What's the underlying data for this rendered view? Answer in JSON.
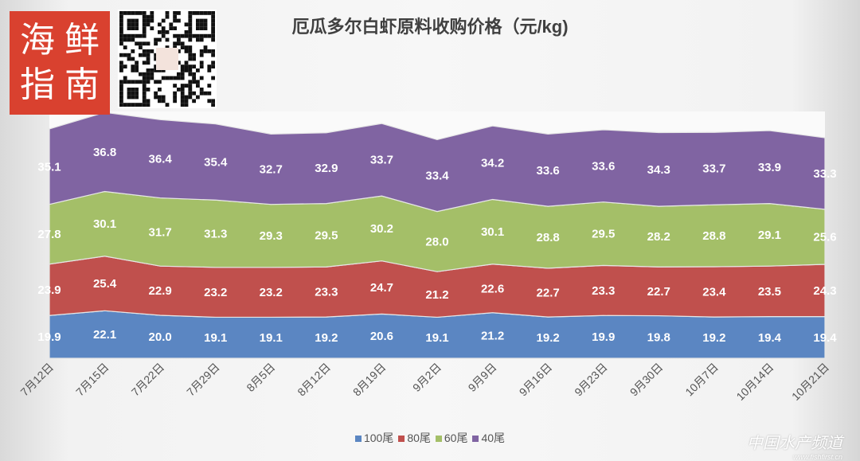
{
  "logo": {
    "chars": [
      "海",
      "鲜",
      "指",
      "南"
    ]
  },
  "watermark": {
    "name": "中国水产频道",
    "url": "www.fishfirst.cn"
  },
  "chart_data": {
    "type": "area",
    "stacked": true,
    "title": "厄瓜多尔白虾原料收购价格（元/kg)",
    "categories": [
      "7月12日",
      "7月15日",
      "7月22日",
      "7月29日",
      "8月5日",
      "8月12日",
      "8月19日",
      "9月2日",
      "9月9日",
      "9月16日",
      "9月23日",
      "9月30日",
      "10月7日",
      "10月14日",
      "10月21日"
    ],
    "series": [
      {
        "name": "100尾",
        "color": "#5b86c2",
        "values": [
          19.9,
          22.1,
          20.0,
          19.1,
          19.1,
          19.2,
          20.6,
          19.1,
          21.2,
          19.2,
          19.9,
          19.8,
          19.2,
          19.4,
          19.4
        ]
      },
      {
        "name": "80尾",
        "color": "#c0504d",
        "values": [
          23.9,
          25.4,
          22.9,
          23.2,
          23.2,
          23.3,
          24.7,
          21.2,
          22.6,
          22.7,
          23.3,
          22.7,
          23.4,
          23.5,
          24.3
        ]
      },
      {
        "name": "60尾",
        "color": "#a4bf68",
        "values": [
          27.8,
          30.1,
          31.7,
          31.3,
          29.3,
          29.5,
          30.2,
          28.0,
          30.1,
          28.8,
          29.5,
          28.2,
          28.8,
          29.1,
          25.6
        ]
      },
      {
        "name": "40尾",
        "color": "#8064a2",
        "values": [
          35.1,
          36.8,
          36.4,
          35.4,
          32.7,
          32.9,
          33.7,
          33.4,
          34.2,
          33.6,
          33.6,
          34.3,
          33.7,
          33.9,
          33.3
        ]
      }
    ],
    "legend": "bottom",
    "grid": false
  }
}
